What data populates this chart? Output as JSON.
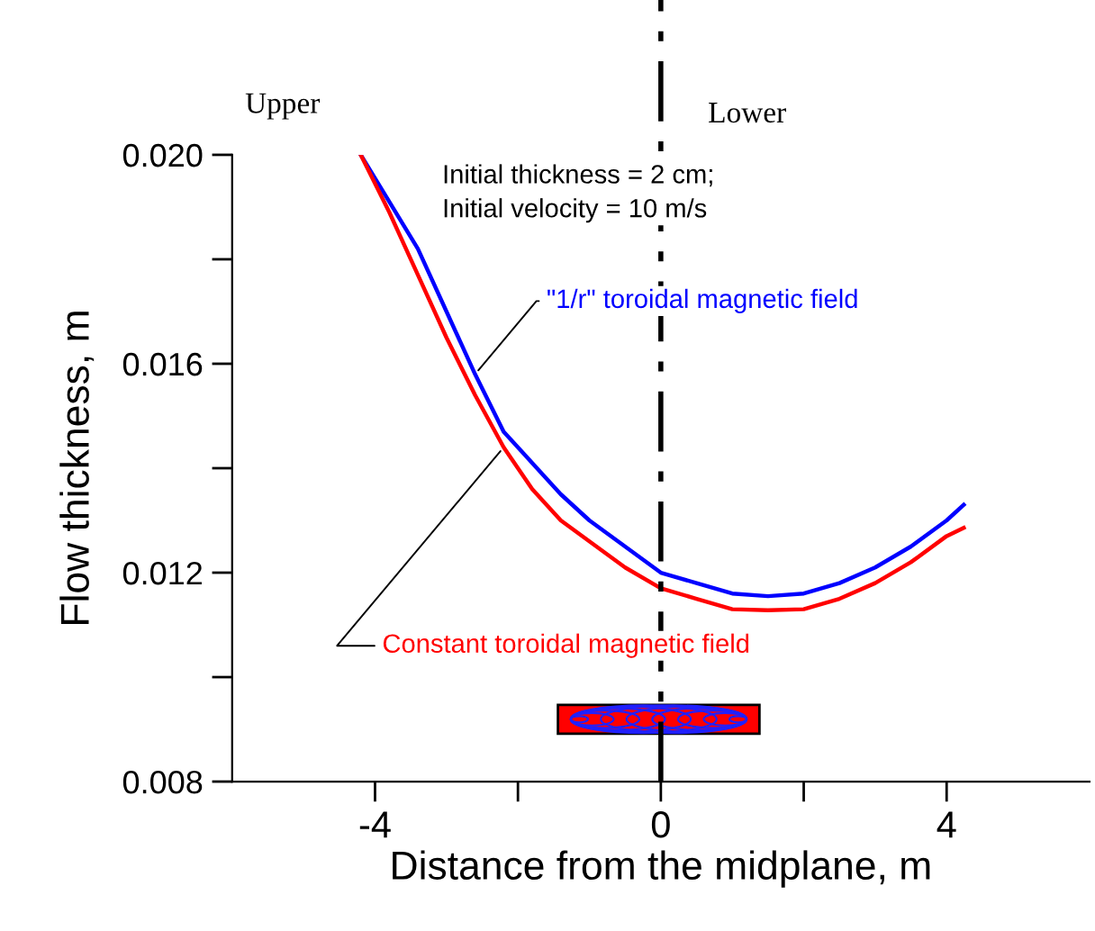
{
  "chart_data": {
    "type": "line",
    "xlabel": "Distance from the midplane, m",
    "ylabel": "Flow thickness, m",
    "xlim": [
      -6,
      6
    ],
    "ylim": [
      0.008,
      0.02
    ],
    "xticks": [
      -4,
      {
        "value": -2,
        "label": null
      },
      0,
      {
        "value": 2,
        "label": null
      },
      4
    ],
    "yticks": [
      {
        "value": 0.008,
        "label": "0.008"
      },
      {
        "value": 0.01,
        "label": null
      },
      {
        "value": 0.012,
        "label": "0.012"
      },
      {
        "value": 0.014,
        "label": null
      },
      {
        "value": 0.016,
        "label": "0.016"
      },
      {
        "value": 0.018,
        "label": null
      },
      {
        "value": 0.02,
        "label": "0.020"
      }
    ],
    "grid": false,
    "line_style": "solid",
    "marker": "none",
    "x": [
      -4.2,
      -3.8,
      -3.4,
      -3.0,
      -2.6,
      -2.2,
      -1.8,
      -1.4,
      -1.0,
      -0.5,
      0,
      0.5,
      1.0,
      1.5,
      2.0,
      2.5,
      3.0,
      3.5,
      4.0,
      4.24
    ],
    "series": [
      {
        "name": "\"1/r\" toroidal magnetic field",
        "color": "#0000ff",
        "values": [
          0.02,
          0.0191,
          0.0182,
          0.017,
          0.0158,
          0.0147,
          0.0141,
          0.0135,
          0.013,
          0.0125,
          0.012,
          0.0118,
          0.0116,
          0.01155,
          0.0116,
          0.0118,
          0.0121,
          0.0125,
          0.013,
          0.0133
        ]
      },
      {
        "name": "Constant toroidal magnetic field",
        "color": "#ff0000",
        "values": [
          0.02,
          0.0189,
          0.0177,
          0.0165,
          0.0154,
          0.0144,
          0.0136,
          0.013,
          0.0126,
          0.0121,
          0.0117,
          0.0115,
          0.0113,
          0.01128,
          0.0113,
          0.0115,
          0.0118,
          0.0122,
          0.0127,
          0.01286
        ]
      }
    ],
    "ref_lines": [
      {
        "axis": "x",
        "value": 0,
        "label": null,
        "color": "#000000"
      }
    ],
    "annotations": [
      "Upper",
      "Lower",
      "Initial thickness = 2 cm;\nInitial velocity = 10 m/s"
    ]
  }
}
